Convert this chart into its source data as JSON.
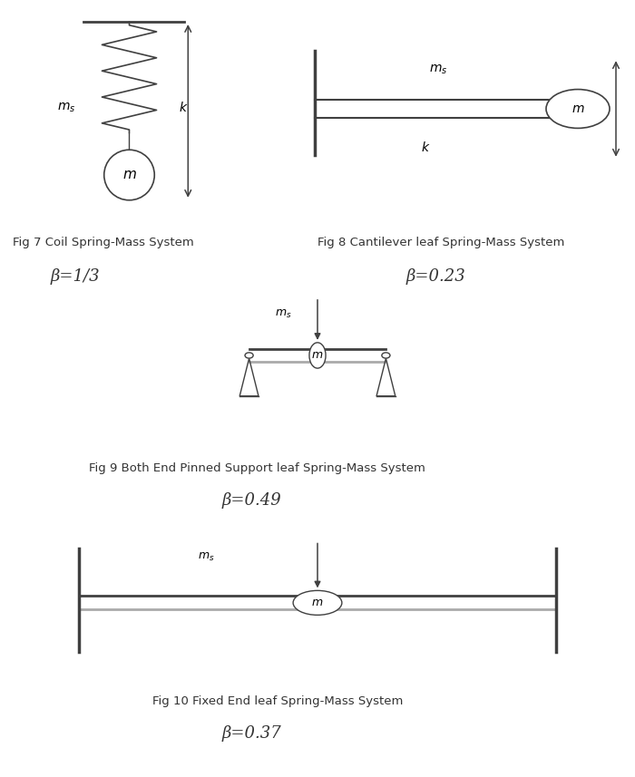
{
  "bg_color": "#ffffff",
  "line_color": "#404040",
  "gray_color": "#aaaaaa",
  "fig_caption_fontsize": 9.5,
  "beta_fontsize": 13,
  "label_fontsize": 10,
  "fig7_caption": "Fig 7 Coil Spring-Mass System",
  "fig8_caption": "Fig 8 Cantilever leaf Spring-Mass System",
  "fig9_caption": "Fig 9 Both End Pinned Support leaf Spring-Mass System",
  "fig10_caption": "Fig 10 Fixed End leaf Spring-Mass System",
  "beta7": "β=1/3",
  "beta8": "β=0.23",
  "beta9": "β=0.49",
  "beta10": "β=0.37"
}
